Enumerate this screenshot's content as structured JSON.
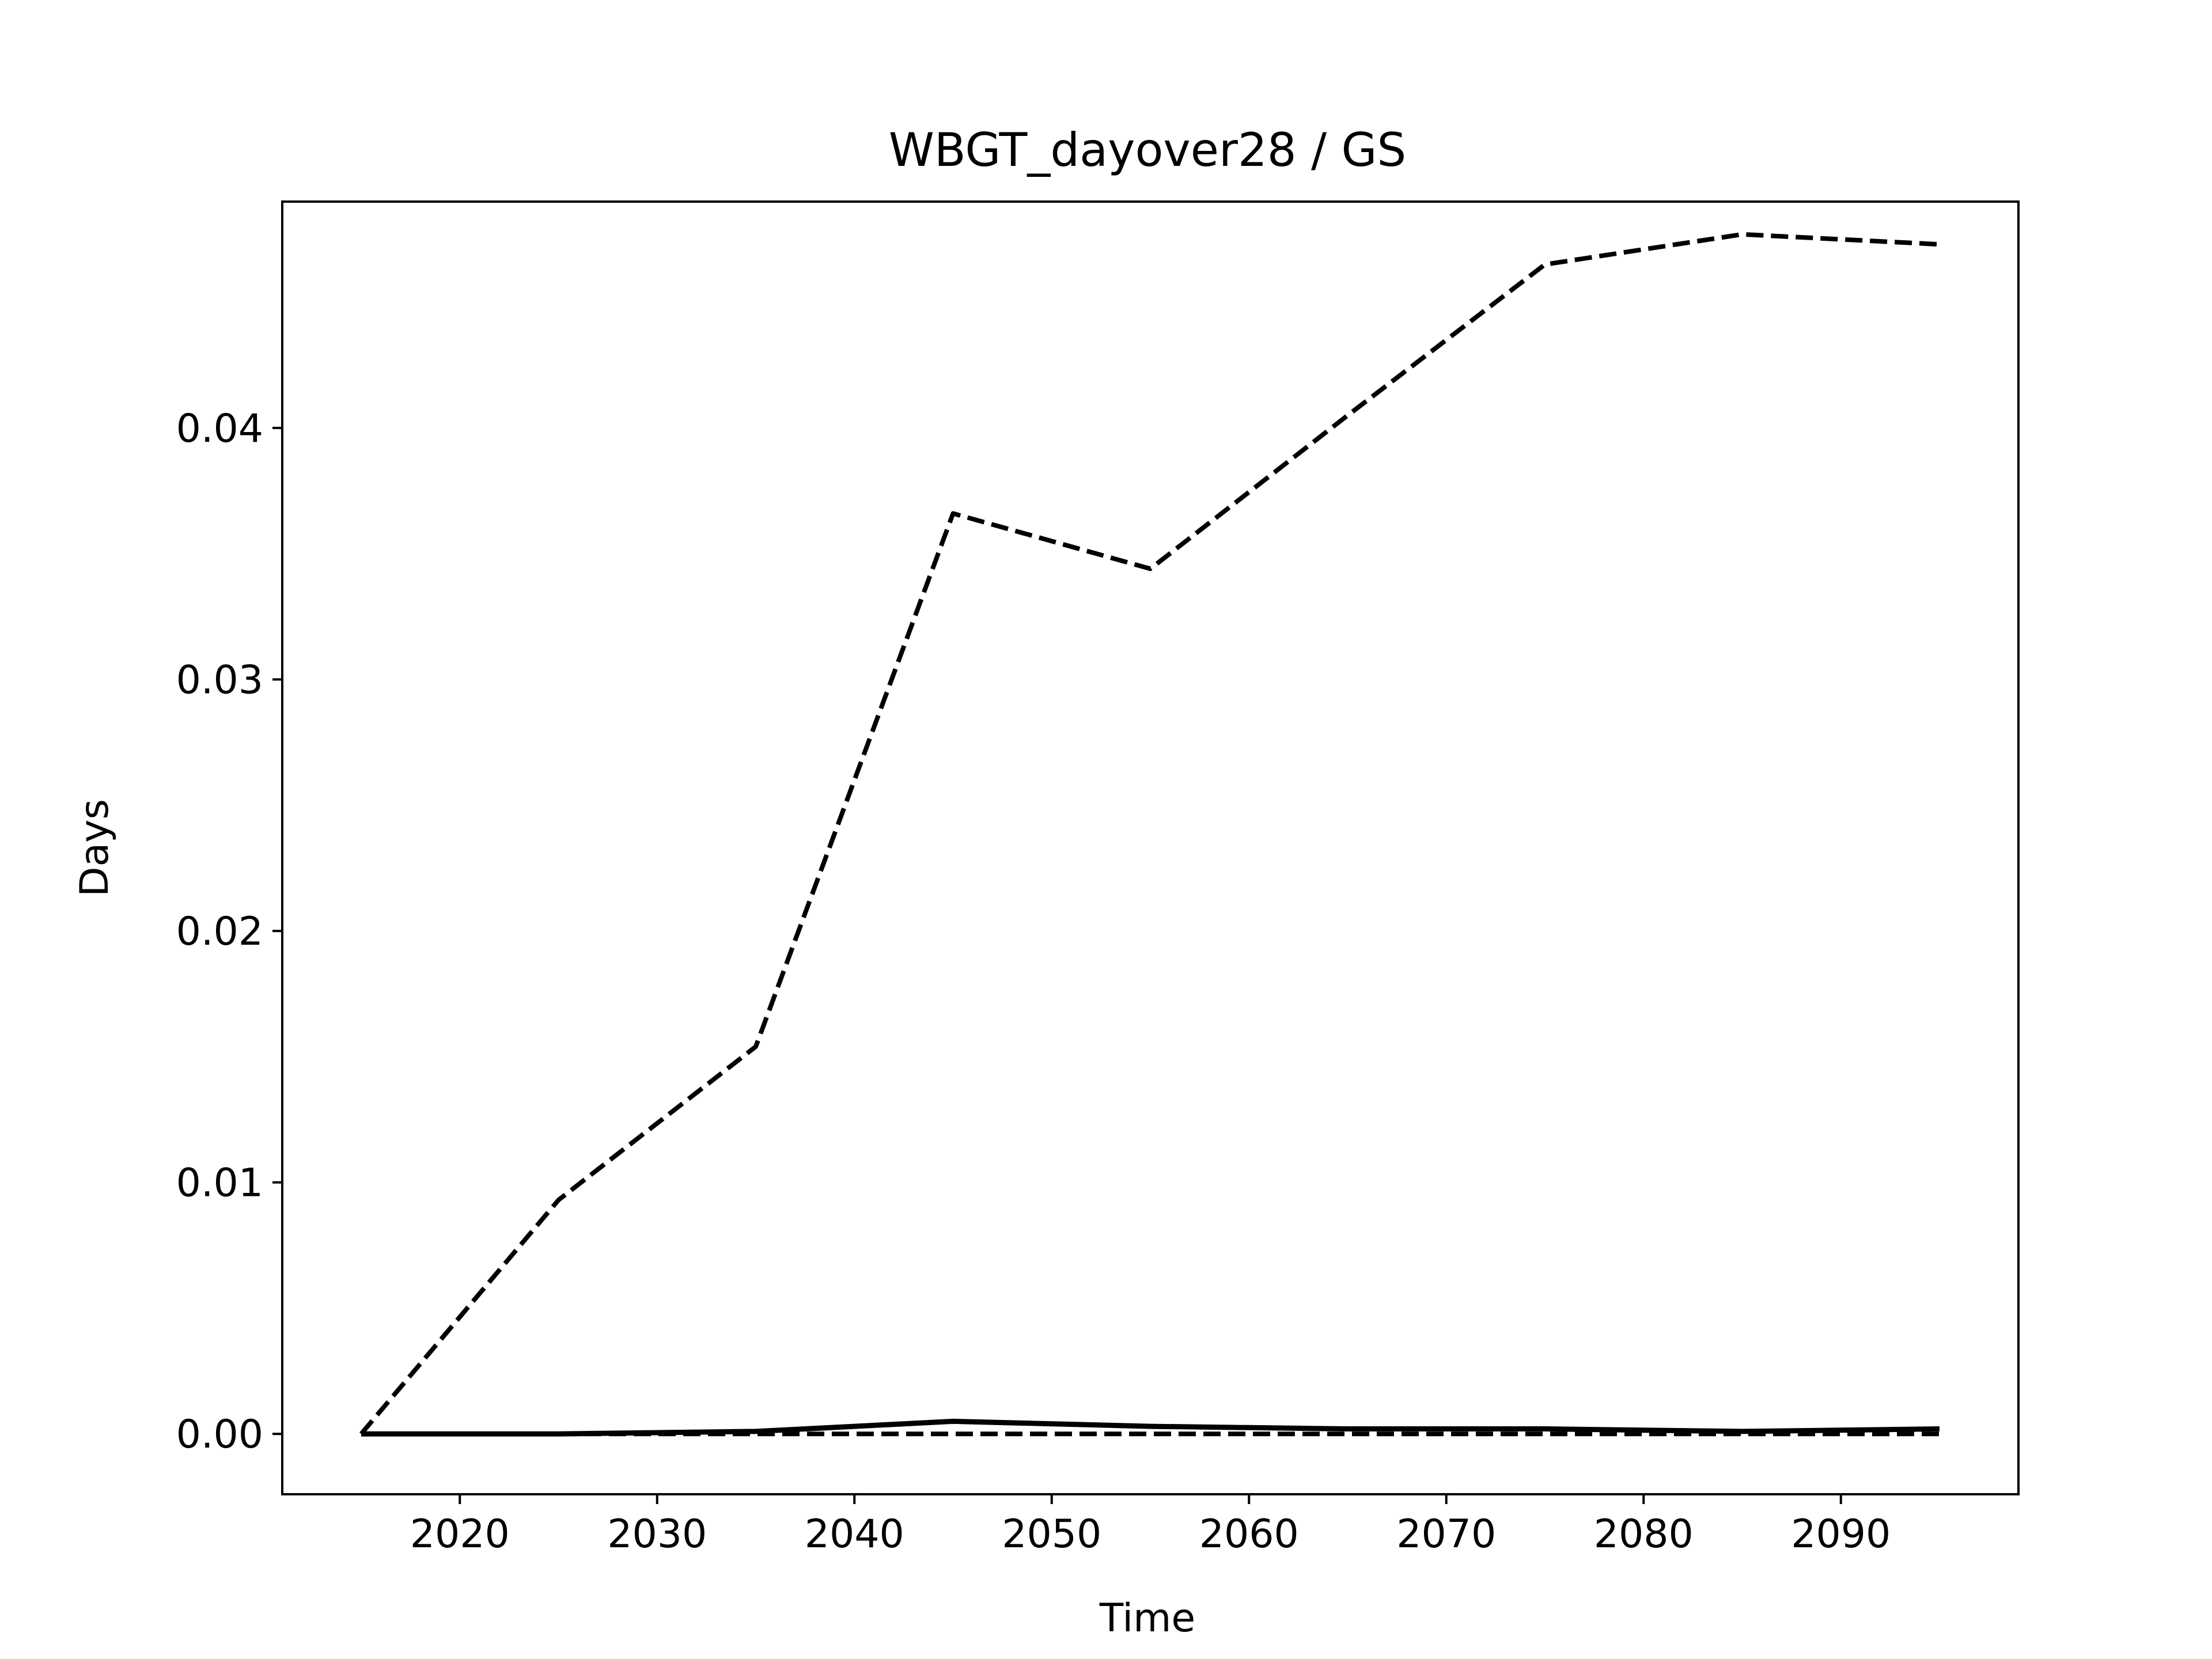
{
  "chart_data": {
    "type": "line",
    "title": "WBGT_dayover28 / GS",
    "xlabel": "Time",
    "ylabel": "Days",
    "xlim": [
      2011,
      2099
    ],
    "ylim": [
      -0.0024,
      0.049
    ],
    "xticks": [
      2020,
      2030,
      2040,
      2050,
      2060,
      2070,
      2080,
      2090
    ],
    "yticks": [
      0.0,
      0.01,
      0.02,
      0.03,
      0.04
    ],
    "ytick_labels": [
      "0.00",
      "0.01",
      "0.02",
      "0.03",
      "0.04"
    ],
    "grid": false,
    "x": [
      2015,
      2025,
      2035,
      2045,
      2055,
      2065,
      2075,
      2085,
      2095
    ],
    "series": [
      {
        "style": "dashed",
        "values": [
          0.0,
          0.0093,
          0.0154,
          0.0366,
          0.0344,
          0.0405,
          0.0465,
          0.0477,
          0.0473
        ]
      },
      {
        "style": "solid",
        "values": [
          0.0,
          0.0,
          0.0001,
          0.0005,
          0.0003,
          0.0002,
          0.0002,
          0.0001,
          0.0002
        ]
      },
      {
        "style": "dashed",
        "values": [
          0.0,
          0.0,
          0.0,
          0.0,
          0.0,
          0.0,
          0.0,
          0.0,
          0.0
        ]
      }
    ],
    "line_color": "#000000"
  }
}
